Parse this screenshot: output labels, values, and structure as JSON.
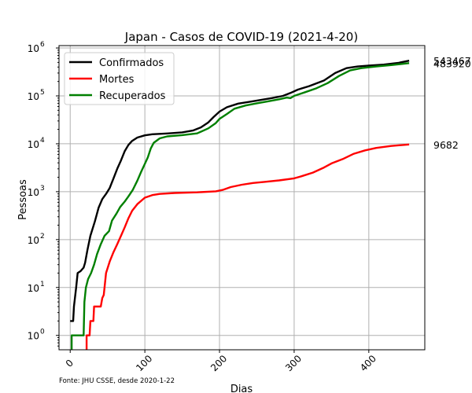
{
  "chart_data": {
    "type": "line",
    "title": "Japan - Casos de COVID-19 (2021-4-20)",
    "xlabel": "Dias",
    "ylabel": "Pessoas",
    "source": "Fonte: JHU CSSE, desde 2020-1-22",
    "xlim": [
      -15,
      475
    ],
    "ylim_log10": [
      -0.3,
      6.05
    ],
    "y_scale": "log",
    "grid": true,
    "legend_position": "top-left",
    "x_ticks": [
      0,
      100,
      200,
      300,
      400
    ],
    "y_ticks": [
      {
        "exponent": 0,
        "label_base": "10",
        "label_exp": "0"
      },
      {
        "exponent": 1,
        "label_base": "10",
        "label_exp": "1"
      },
      {
        "exponent": 2,
        "label_base": "10",
        "label_exp": "2"
      },
      {
        "exponent": 3,
        "label_base": "10",
        "label_exp": "3"
      },
      {
        "exponent": 4,
        "label_base": "10",
        "label_exp": "4"
      },
      {
        "exponent": 5,
        "label_base": "10",
        "label_exp": "5"
      },
      {
        "exponent": 6,
        "label_base": "10",
        "label_exp": "6"
      }
    ],
    "series": [
      {
        "name": "Confirmados",
        "color": "#000000",
        "final_value_label": "543467",
        "points": [
          [
            0,
            2
          ],
          [
            4,
            2
          ],
          [
            5,
            4
          ],
          [
            8,
            10
          ],
          [
            10,
            20
          ],
          [
            14,
            22
          ],
          [
            18,
            26
          ],
          [
            20,
            33
          ],
          [
            23,
            60
          ],
          [
            27,
            120
          ],
          [
            33,
            240
          ],
          [
            38,
            460
          ],
          [
            43,
            700
          ],
          [
            48,
            900
          ],
          [
            53,
            1200
          ],
          [
            58,
            1900
          ],
          [
            63,
            3000
          ],
          [
            68,
            4500
          ],
          [
            73,
            7000
          ],
          [
            78,
            9500
          ],
          [
            83,
            11500
          ],
          [
            90,
            13500
          ],
          [
            100,
            15000
          ],
          [
            110,
            15800
          ],
          [
            130,
            16400
          ],
          [
            150,
            17300
          ],
          [
            165,
            19000
          ],
          [
            175,
            22000
          ],
          [
            185,
            28000
          ],
          [
            192,
            36000
          ],
          [
            200,
            47000
          ],
          [
            210,
            58000
          ],
          [
            225,
            69000
          ],
          [
            240,
            75000
          ],
          [
            255,
            82000
          ],
          [
            270,
            90000
          ],
          [
            285,
            100000
          ],
          [
            295,
            115000
          ],
          [
            305,
            135000
          ],
          [
            320,
            160000
          ],
          [
            340,
            210000
          ],
          [
            355,
            300000
          ],
          [
            370,
            380000
          ],
          [
            385,
            410000
          ],
          [
            400,
            430000
          ],
          [
            420,
            450000
          ],
          [
            440,
            490000
          ],
          [
            454,
            543467
          ]
        ]
      },
      {
        "name": "Mortes",
        "color": "#ff0000",
        "final_value_label": "9682",
        "points": [
          [
            22,
            0.5
          ],
          [
            22,
            1
          ],
          [
            26,
            1
          ],
          [
            27,
            2
          ],
          [
            31,
            2
          ],
          [
            32,
            4
          ],
          [
            41,
            4
          ],
          [
            43,
            6
          ],
          [
            45,
            7
          ],
          [
            48,
            20
          ],
          [
            53,
            35
          ],
          [
            58,
            55
          ],
          [
            63,
            80
          ],
          [
            68,
            120
          ],
          [
            73,
            180
          ],
          [
            78,
            280
          ],
          [
            83,
            400
          ],
          [
            90,
            550
          ],
          [
            100,
            750
          ],
          [
            110,
            850
          ],
          [
            120,
            900
          ],
          [
            140,
            940
          ],
          [
            170,
            970
          ],
          [
            195,
            1020
          ],
          [
            205,
            1100
          ],
          [
            215,
            1250
          ],
          [
            230,
            1400
          ],
          [
            245,
            1520
          ],
          [
            260,
            1600
          ],
          [
            280,
            1720
          ],
          [
            300,
            1900
          ],
          [
            310,
            2100
          ],
          [
            325,
            2500
          ],
          [
            340,
            3200
          ],
          [
            350,
            3900
          ],
          [
            365,
            4800
          ],
          [
            380,
            6200
          ],
          [
            395,
            7300
          ],
          [
            410,
            8200
          ],
          [
            430,
            9000
          ],
          [
            454,
            9682
          ]
        ]
      },
      {
        "name": "Recuperados",
        "color": "#008000",
        "final_value_label": "483920",
        "points": [
          [
            2,
            0.5
          ],
          [
            2,
            1
          ],
          [
            15,
            1
          ],
          [
            18,
            1
          ],
          [
            19,
            5
          ],
          [
            21,
            10
          ],
          [
            24,
            15
          ],
          [
            28,
            20
          ],
          [
            32,
            30
          ],
          [
            36,
            50
          ],
          [
            41,
            80
          ],
          [
            46,
            120
          ],
          [
            52,
            150
          ],
          [
            56,
            250
          ],
          [
            62,
            350
          ],
          [
            67,
            480
          ],
          [
            73,
            620
          ],
          [
            78,
            800
          ],
          [
            84,
            1100
          ],
          [
            90,
            1700
          ],
          [
            95,
            2600
          ],
          [
            100,
            3800
          ],
          [
            104,
            5200
          ],
          [
            108,
            8000
          ],
          [
            112,
            10500
          ],
          [
            120,
            13000
          ],
          [
            130,
            14300
          ],
          [
            150,
            15200
          ],
          [
            170,
            16500
          ],
          [
            185,
            21000
          ],
          [
            195,
            27000
          ],
          [
            200,
            33000
          ],
          [
            210,
            42000
          ],
          [
            220,
            54000
          ],
          [
            235,
            63000
          ],
          [
            250,
            70000
          ],
          [
            265,
            77000
          ],
          [
            280,
            85000
          ],
          [
            290,
            92000
          ],
          [
            295,
            90000
          ],
          [
            300,
            100000
          ],
          [
            315,
            120000
          ],
          [
            330,
            145000
          ],
          [
            345,
            185000
          ],
          [
            360,
            260000
          ],
          [
            375,
            340000
          ],
          [
            390,
            380000
          ],
          [
            410,
            410000
          ],
          [
            430,
            440000
          ],
          [
            454,
            483920
          ]
        ]
      }
    ]
  }
}
